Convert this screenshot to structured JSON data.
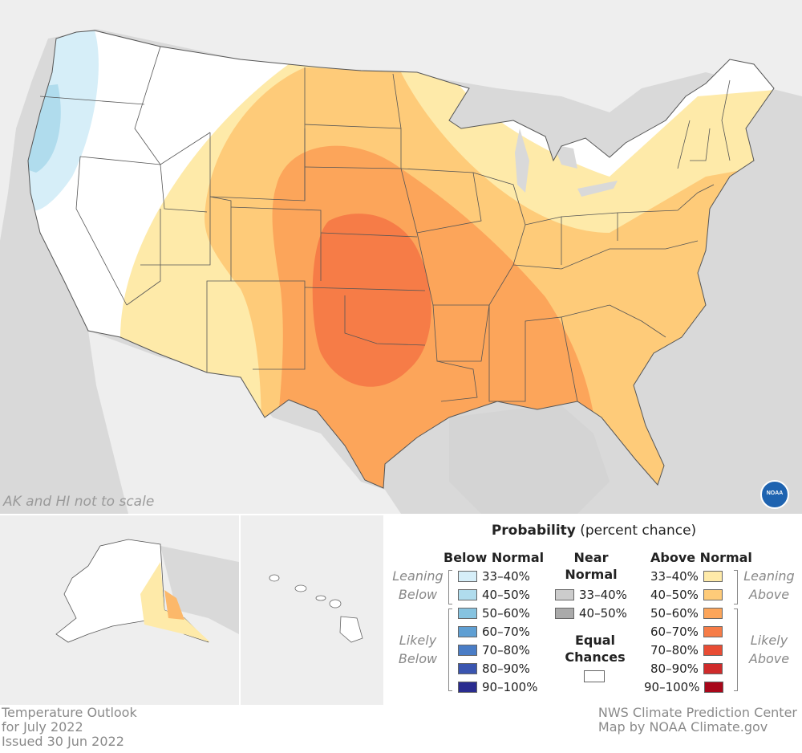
{
  "colors": {
    "ocean": "#d9d9d9",
    "land_other": "#eeeeee",
    "us_land": "#ffffff",
    "border": "#555555",
    "below_33_40": "#d6eef8",
    "below_40_50": "#b0dced",
    "below_50_60": "#86c3e0",
    "below_60_70": "#5f9fd3",
    "below_70_80": "#4a7dc6",
    "below_80_90": "#3a55b0",
    "below_90_100": "#2a2c8f",
    "near_33_40": "#cccccc",
    "near_40_50": "#aaaaaa",
    "above_33_40": "#feeaa9",
    "above_40_50": "#fecb79",
    "above_50_60": "#fca55a",
    "above_60_70": "#f67c47",
    "above_70_80": "#e84c34",
    "above_80_90": "#cf2b2b",
    "above_90_100": "#a8071a"
  },
  "map_note": "AK and HI not to scale",
  "logo_text": "NOAA",
  "legend": {
    "title_bold": "Probability",
    "title_rest": " (percent chance)",
    "below_header": "Below Normal",
    "near_header_line1": "Near",
    "near_header_line2": "Normal",
    "above_header": "Above Normal",
    "equal_line1": "Equal",
    "equal_line2": "Chances",
    "leaning_below": [
      "Leaning",
      "Below"
    ],
    "likely_below": [
      "Likely",
      "Below"
    ],
    "leaning_above": [
      "Leaning",
      "Above"
    ],
    "likely_above": [
      "Likely",
      "Above"
    ],
    "below_items": [
      "33–40%",
      "40–50%",
      "50–60%",
      "60–70%",
      "70–80%",
      "80–90%",
      "90–100%"
    ],
    "near_items": [
      "33–40%",
      "40–50%"
    ],
    "above_items": [
      "33–40%",
      "40–50%",
      "50–60%",
      "60–70%",
      "70–80%",
      "80–90%",
      "90–100%"
    ]
  },
  "footer": {
    "title": "Temperature Outlook",
    "period": "for July 2022",
    "issued": "Issued 30 Jun 2022",
    "source": "NWS Climate Prediction Center",
    "credit": "Map by NOAA Climate.gov"
  }
}
